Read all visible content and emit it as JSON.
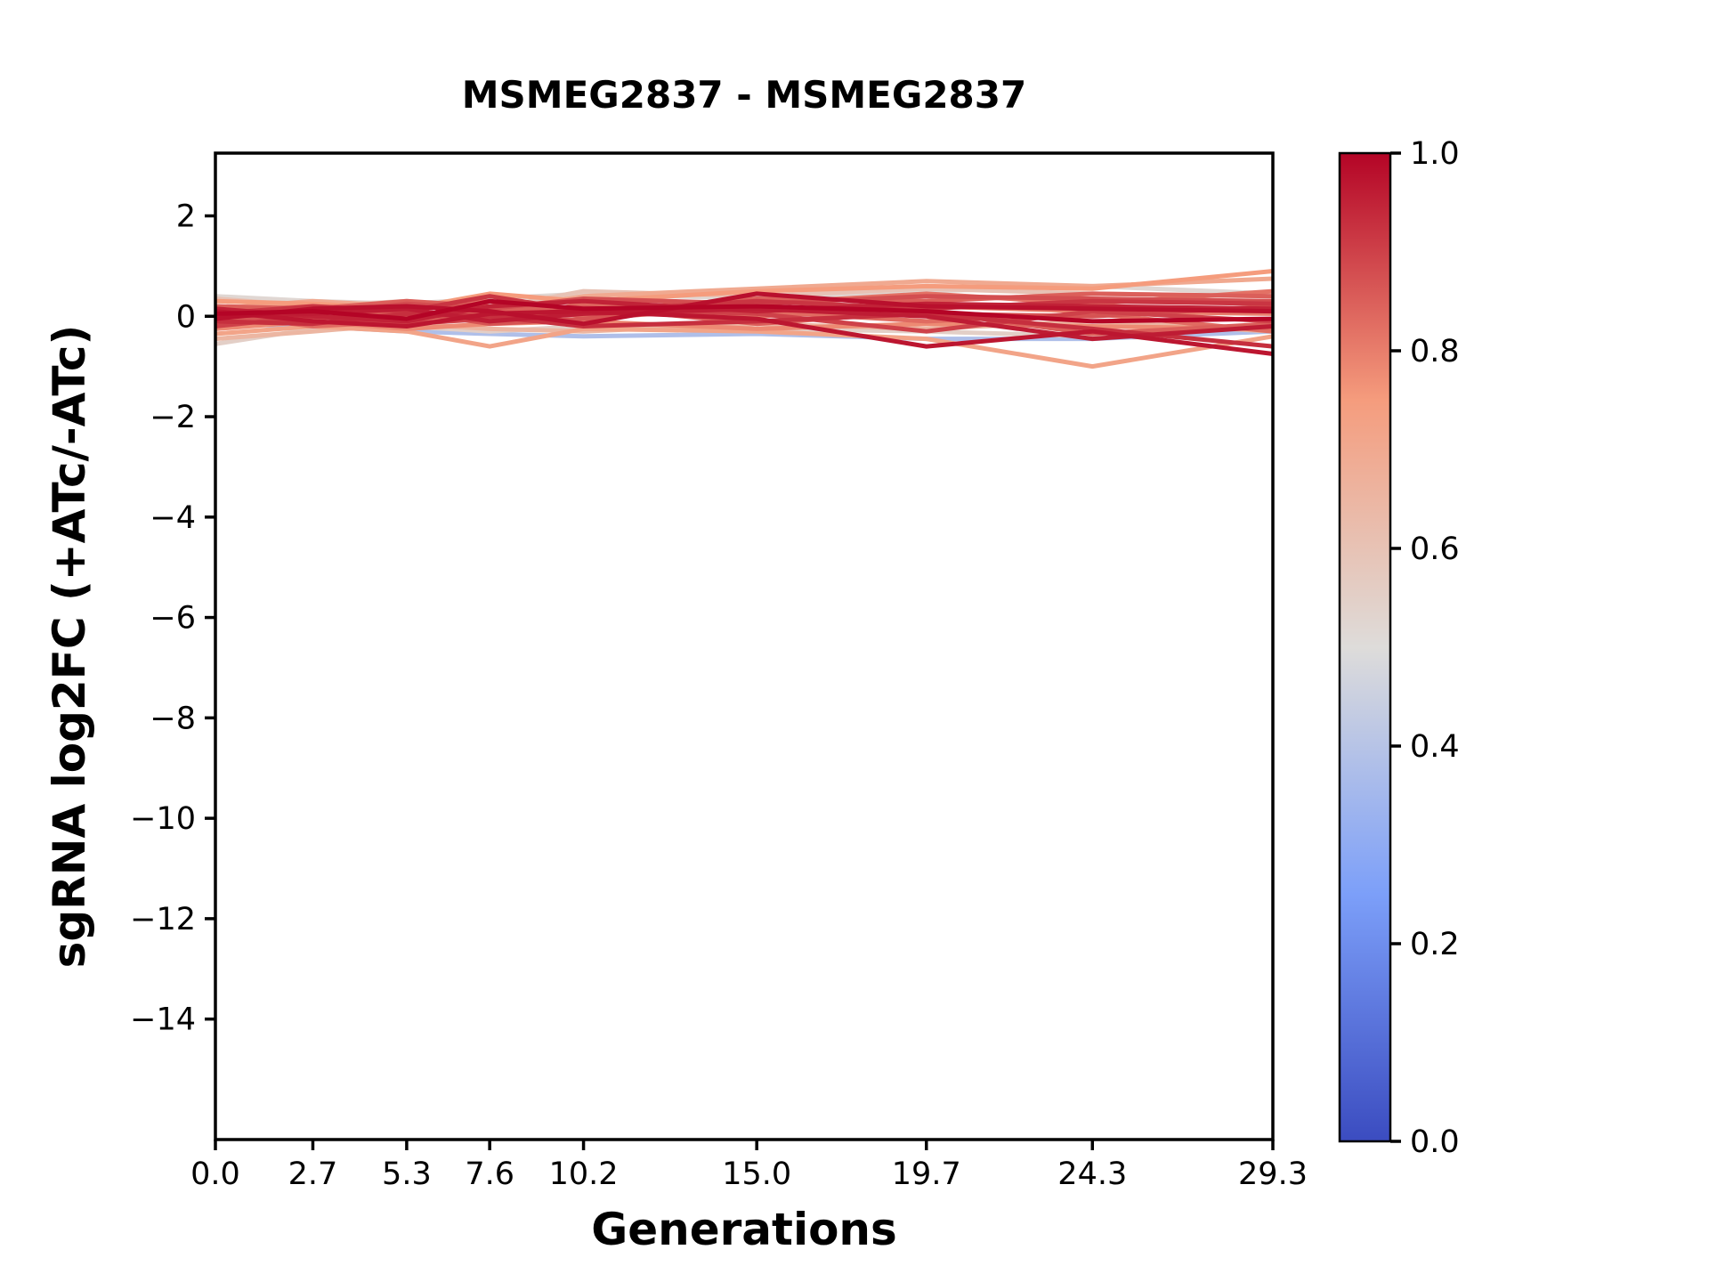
{
  "figure": {
    "background": "#ffffff"
  },
  "chart_data": {
    "type": "line",
    "title": "MSMEG2837 - MSMEG2837",
    "xlabel": "Generations",
    "ylabel": "sgRNA log2FC (+ATc/-ATc)",
    "x": [
      0.0,
      2.7,
      5.3,
      7.6,
      10.2,
      15.0,
      19.7,
      24.3,
      29.3
    ],
    "xtick_labels": [
      "0.0",
      "2.7",
      "5.3",
      "7.6",
      "10.2",
      "15.0",
      "19.7",
      "24.3",
      "29.3"
    ],
    "yticks": [
      2,
      0,
      -2,
      -4,
      -6,
      -8,
      -10,
      -12,
      -14
    ],
    "ytick_labels": [
      "2",
      "0",
      "−2",
      "−4",
      "−6",
      "−8",
      "−10",
      "−12",
      "−14"
    ],
    "xlim": [
      0,
      29.3
    ],
    "ylim": [
      -16.4,
      3.25
    ],
    "grid": false,
    "legend": false,
    "axis_color": "#000000",
    "series": [
      {
        "colormap_value": 0.38,
        "values": [
          -0.15,
          -0.2,
          -0.3,
          -0.35,
          -0.4,
          -0.35,
          -0.45,
          -0.45,
          -0.3
        ]
      },
      {
        "colormap_value": 0.52,
        "values": [
          0.4,
          0.3,
          0.25,
          0.35,
          0.45,
          0.35,
          0.5,
          0.6,
          0.45
        ]
      },
      {
        "colormap_value": 0.55,
        "values": [
          -0.55,
          -0.25,
          -0.2,
          -0.3,
          -0.2,
          -0.25,
          -0.3,
          -0.4,
          -0.2
        ]
      },
      {
        "colormap_value": 0.6,
        "values": [
          0.35,
          0.2,
          0.3,
          0.15,
          0.5,
          0.4,
          0.55,
          0.45,
          0.4
        ]
      },
      {
        "colormap_value": 0.65,
        "values": [
          -0.45,
          -0.3,
          -0.15,
          -0.25,
          -0.3,
          -0.15,
          -0.25,
          -0.1,
          -0.3
        ]
      },
      {
        "colormap_value": 0.7,
        "values": [
          0.15,
          0.3,
          0.2,
          0.1,
          0.4,
          0.55,
          0.7,
          0.6,
          0.75
        ]
      },
      {
        "colormap_value": 0.72,
        "values": [
          -0.35,
          -0.2,
          -0.3,
          -0.6,
          -0.25,
          -0.3,
          -0.45,
          -1.0,
          -0.4
        ]
      },
      {
        "colormap_value": 0.75,
        "values": [
          0.3,
          0.25,
          0.15,
          0.45,
          0.3,
          0.5,
          0.6,
          0.55,
          0.9
        ]
      },
      {
        "colormap_value": 0.78,
        "values": [
          -0.25,
          -0.1,
          -0.25,
          -0.15,
          -0.1,
          -0.25,
          -0.15,
          -0.2,
          -0.25
        ]
      },
      {
        "colormap_value": 0.8,
        "values": [
          0.1,
          0.2,
          0.05,
          -0.1,
          0.25,
          0.0,
          0.2,
          0.1,
          0.05
        ]
      },
      {
        "colormap_value": 0.82,
        "values": [
          -0.05,
          0.05,
          0.2,
          0.3,
          0.0,
          0.25,
          0.45,
          0.25,
          0.5
        ]
      },
      {
        "colormap_value": 0.83,
        "values": [
          0.05,
          -0.2,
          -0.1,
          0.0,
          0.2,
          0.1,
          -0.1,
          0.05,
          -0.3
        ]
      },
      {
        "colormap_value": 0.85,
        "values": [
          0.2,
          0.15,
          0.3,
          0.2,
          0.1,
          0.35,
          0.3,
          0.45,
          0.4
        ]
      },
      {
        "colormap_value": 0.85,
        "values": [
          -0.15,
          0.1,
          0.0,
          0.1,
          0.2,
          -0.15,
          0.1,
          -0.35,
          -0.15
        ]
      },
      {
        "colormap_value": 0.87,
        "values": [
          0.0,
          -0.05,
          0.1,
          -0.15,
          -0.05,
          0.2,
          0.05,
          0.0,
          0.2
        ]
      },
      {
        "colormap_value": 0.88,
        "values": [
          0.1,
          0.05,
          0.25,
          0.15,
          0.35,
          0.25,
          0.4,
          0.35,
          0.3
        ]
      },
      {
        "colormap_value": 0.9,
        "values": [
          -0.2,
          0.0,
          -0.15,
          -0.05,
          0.15,
          0.05,
          -0.3,
          0.1,
          -0.1
        ]
      },
      {
        "colormap_value": 0.92,
        "values": [
          0.05,
          0.2,
          0.1,
          0.4,
          0.1,
          0.3,
          0.15,
          0.3,
          0.25
        ]
      },
      {
        "colormap_value": 0.93,
        "values": [
          -0.1,
          -0.15,
          0.05,
          0.0,
          -0.2,
          -0.1,
          0.05,
          -0.25,
          -0.6
        ]
      },
      {
        "colormap_value": 0.95,
        "values": [
          0.15,
          0.0,
          -0.1,
          0.2,
          0.3,
          0.1,
          0.25,
          0.2,
          0.15
        ]
      },
      {
        "colormap_value": 0.96,
        "values": [
          0.0,
          0.05,
          0.15,
          -0.1,
          0.05,
          0.15,
          0.0,
          -0.45,
          -0.2
        ]
      },
      {
        "colormap_value": 0.97,
        "values": [
          0.1,
          -0.1,
          -0.2,
          0.05,
          0.1,
          -0.05,
          -0.6,
          -0.3,
          -0.75
        ]
      },
      {
        "colormap_value": 0.98,
        "values": [
          -0.05,
          0.15,
          0.2,
          0.1,
          -0.15,
          0.45,
          0.2,
          0.15,
          0.1
        ]
      },
      {
        "colormap_value": 1.0,
        "values": [
          0.05,
          0.1,
          -0.05,
          0.3,
          0.15,
          0.2,
          0.1,
          -0.1,
          -0.05
        ]
      }
    ],
    "colorbar": {
      "cmap": "coolwarm",
      "vmin": 0.0,
      "vmax": 1.0,
      "tick_labels": [
        "0.0",
        "0.2",
        "0.4",
        "0.6",
        "0.8",
        "1.0"
      ],
      "stops": [
        {
          "t": 0.0,
          "color": "#3b4cc0"
        },
        {
          "t": 0.25,
          "color": "#7c9ff9"
        },
        {
          "t": 0.5,
          "color": "#dedcda"
        },
        {
          "t": 0.75,
          "color": "#f59c7d"
        },
        {
          "t": 1.0,
          "color": "#b40426"
        }
      ]
    }
  }
}
